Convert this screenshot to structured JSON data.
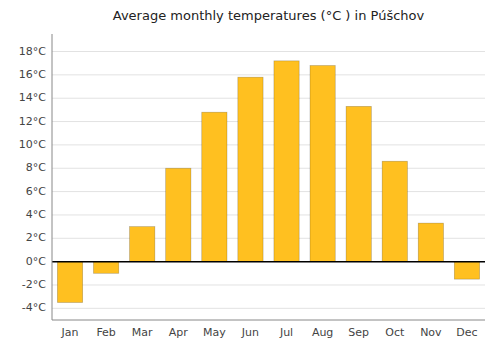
{
  "chart_data": {
    "type": "bar",
    "title": "Average monthly temperatures (°C ) in Púšchov",
    "categories": [
      "Jan",
      "Feb",
      "Mar",
      "Apr",
      "May",
      "Jun",
      "Jul",
      "Aug",
      "Sep",
      "Oct",
      "Nov",
      "Dec"
    ],
    "values": [
      -3.5,
      -1.0,
      3.0,
      8.0,
      12.8,
      15.8,
      17.2,
      16.8,
      13.3,
      8.6,
      3.3,
      -1.5
    ],
    "color": "#FFC020",
    "ylim": [
      -5,
      19.5
    ],
    "yticks": [
      {
        "value": -4,
        "label": "-4°C"
      },
      {
        "value": -2,
        "label": "-2°C"
      },
      {
        "value": 0,
        "label": "0°C"
      },
      {
        "value": 2,
        "label": "2°C"
      },
      {
        "value": 4,
        "label": "4°C"
      },
      {
        "value": 6,
        "label": "6°C"
      },
      {
        "value": 8,
        "label": "8°C"
      },
      {
        "value": 10,
        "label": "10°C"
      },
      {
        "value": 12,
        "label": "12°C"
      },
      {
        "value": 14,
        "label": "14°C"
      },
      {
        "value": 16,
        "label": "16°C"
      },
      {
        "value": 18,
        "label": "18°C"
      }
    ],
    "grid": true
  }
}
